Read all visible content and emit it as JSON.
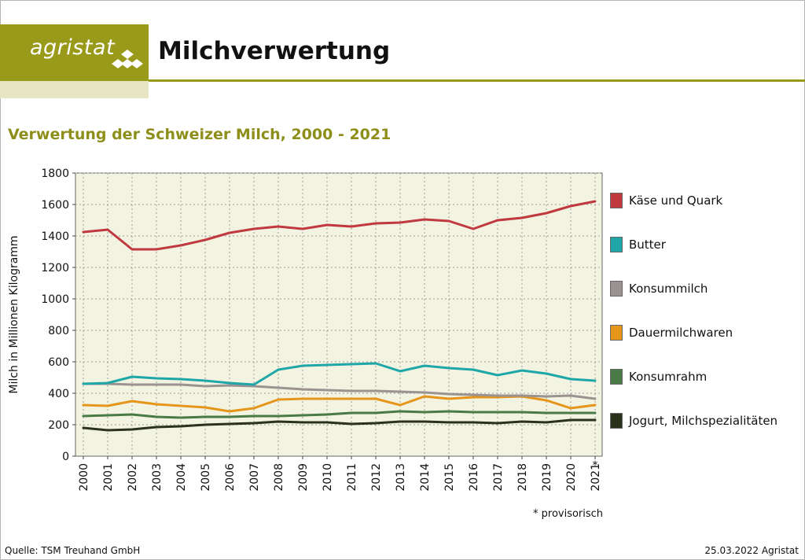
{
  "header": {
    "logo_text": "agristat",
    "title": "Milchverwertung"
  },
  "footer": {
    "source": "Quelle: TSM Treuhand GmbH",
    "date_credit": "25.03.2022 Agristat"
  },
  "chart_data": {
    "type": "line",
    "title": "Verwertung der Schweizer Milch, 2000 - 2021",
    "ylabel": "Milch in Millionen Kilogramm",
    "xlabel": "",
    "ylim": [
      0,
      1800
    ],
    "yticks": [
      0,
      200,
      400,
      600,
      800,
      1000,
      1200,
      1400,
      1600,
      1800
    ],
    "grid": true,
    "legend_position": "right",
    "plot_background": "#f3f3e2",
    "x": [
      "2000",
      "2001",
      "2002",
      "2003",
      "2004",
      "2005",
      "2006",
      "2007",
      "2008",
      "2009",
      "2010",
      "2011",
      "2012",
      "2013",
      "2014",
      "2015",
      "2016",
      "2017",
      "2018",
      "2019",
      "2020",
      "2021"
    ],
    "x_markers": [
      "",
      "",
      "",
      "",
      "",
      "",
      "",
      "",
      "",
      "",
      "",
      "",
      "",
      "",
      "",
      "",
      "",
      "",
      "",
      "",
      "",
      "*"
    ],
    "footnote": "* provisorisch",
    "series": [
      {
        "name": "Käse und Quark",
        "color": "#c0393f",
        "values": [
          1425,
          1440,
          1315,
          1315,
          1340,
          1375,
          1420,
          1445,
          1460,
          1445,
          1470,
          1460,
          1480,
          1485,
          1505,
          1495,
          1445,
          1500,
          1515,
          1545,
          1590,
          1620
        ]
      },
      {
        "name": "Butter",
        "color": "#1fa7a7",
        "values": [
          460,
          465,
          505,
          495,
          490,
          480,
          465,
          455,
          550,
          575,
          580,
          585,
          590,
          540,
          575,
          560,
          550,
          515,
          545,
          525,
          490,
          480
        ]
      },
      {
        "name": "Konsummilch",
        "color": "#9a9391",
        "values": [
          460,
          460,
          455,
          455,
          455,
          445,
          450,
          445,
          435,
          425,
          420,
          415,
          415,
          410,
          405,
          395,
          390,
          385,
          385,
          380,
          385,
          365
        ]
      },
      {
        "name": "Dauermilchwaren",
        "color": "#e5961a",
        "values": [
          325,
          320,
          350,
          330,
          320,
          310,
          285,
          305,
          360,
          365,
          365,
          365,
          365,
          325,
          380,
          365,
          375,
          375,
          380,
          355,
          305,
          325
        ]
      },
      {
        "name": "Konsumrahm",
        "color": "#4a7a45",
        "values": [
          255,
          260,
          265,
          250,
          245,
          250,
          250,
          255,
          255,
          260,
          265,
          275,
          275,
          285,
          280,
          285,
          280,
          280,
          280,
          275,
          275,
          275
        ]
      },
      {
        "name": "Jogurt, Milchspezialitäten",
        "color": "#2a321b",
        "values": [
          180,
          165,
          170,
          185,
          190,
          200,
          205,
          210,
          220,
          215,
          215,
          205,
          210,
          220,
          220,
          215,
          215,
          210,
          220,
          215,
          230,
          230
        ]
      }
    ]
  }
}
